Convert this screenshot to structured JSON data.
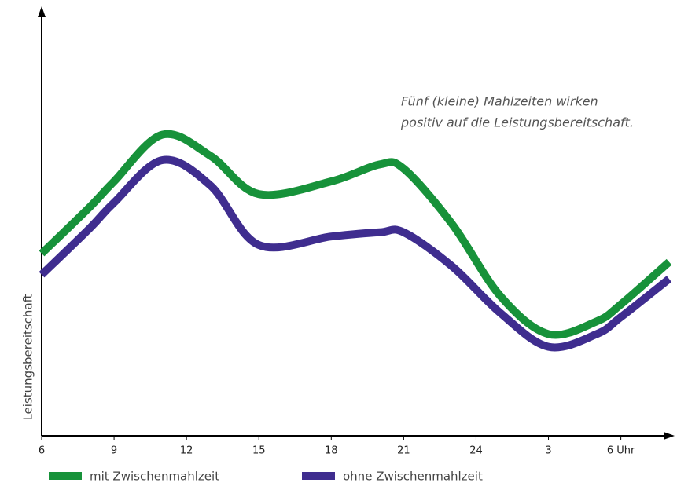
{
  "chart_data": {
    "type": "line",
    "y_label": "Leistungsbereitschaft",
    "annotation": [
      "Fünf (kleine) Mahlzeiten wirken",
      "positiv auf die Leistungsbereitschaft."
    ],
    "x": [
      6,
      8,
      9,
      11,
      13,
      15,
      18,
      20,
      21,
      23,
      25,
      27,
      29,
      30,
      32
    ],
    "series": [
      {
        "name": "mit Zwischenmahlzeit",
        "color": "#17923a",
        "values": [
          43,
          54,
          60,
          71,
          66,
          57,
          60,
          64,
          63,
          50,
          33,
          24,
          27,
          31,
          41
        ]
      },
      {
        "name": "ohne Zwischenmahlzeit",
        "color": "#3f2d8f",
        "values": [
          38,
          49,
          55,
          65,
          59,
          45,
          47,
          48,
          48,
          40,
          29,
          21,
          24,
          28,
          37
        ]
      }
    ],
    "xlim": [
      6,
      32
    ],
    "xticks": [
      6,
      9,
      12,
      15,
      18,
      21,
      24,
      {
        "value": 27,
        "label": "3"
      },
      {
        "value": 30,
        "label": "6 Uhr"
      }
    ],
    "ylim": [
      0,
      100
    ]
  }
}
